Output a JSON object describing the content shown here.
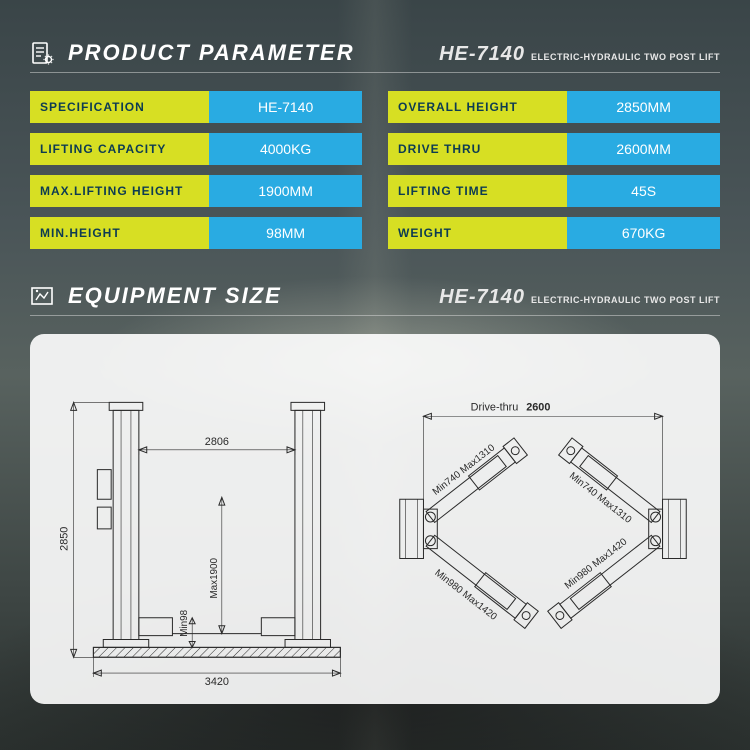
{
  "colors": {
    "label_bg": "#d7df23",
    "label_fg": "#0d3b52",
    "value_bg": "#29abe2",
    "value_fg": "#ffffff"
  },
  "section1": {
    "title": "PRODUCT PARAMETER",
    "model": "HE-7140",
    "tagline": "ELECTRIC-HYDRAULIC TWO POST LIFT"
  },
  "section2": {
    "title": "EQUIPMENT SIZE",
    "model": "HE-7140",
    "tagline": "ELECTRIC-HYDRAULIC TWO POST LIFT"
  },
  "params_left": [
    {
      "label": "SPECIFICATION",
      "value": "HE-7140"
    },
    {
      "label": "LIFTING  CAPACITY",
      "value": "4000KG"
    },
    {
      "label": "MAX.LIFTING  HEIGHT",
      "value": "1900MM"
    },
    {
      "label": "MIN.HEIGHT",
      "value": "98MM"
    }
  ],
  "params_right": [
    {
      "label": "OVERALL  HEIGHT",
      "value": "2850MM"
    },
    {
      "label": "DRIVE  THRU",
      "value": "2600MM"
    },
    {
      "label": "LIFTING  TIME",
      "value": "45S"
    },
    {
      "label": "WEIGHT",
      "value": "670KG"
    }
  ],
  "drawing_front": {
    "overall_height": "2850",
    "inner_width": "2806",
    "base_width": "3420",
    "max_lift": "Max1900",
    "min_h": "Min98"
  },
  "drawing_top": {
    "drive_thru_label": "Drive-thru",
    "drive_thru_val": "2600",
    "arm1": "Min740  Max1310",
    "arm2": "Min740  Max1310",
    "arm3": "Min980  Max1420",
    "arm4": "Min980  Max1420"
  }
}
